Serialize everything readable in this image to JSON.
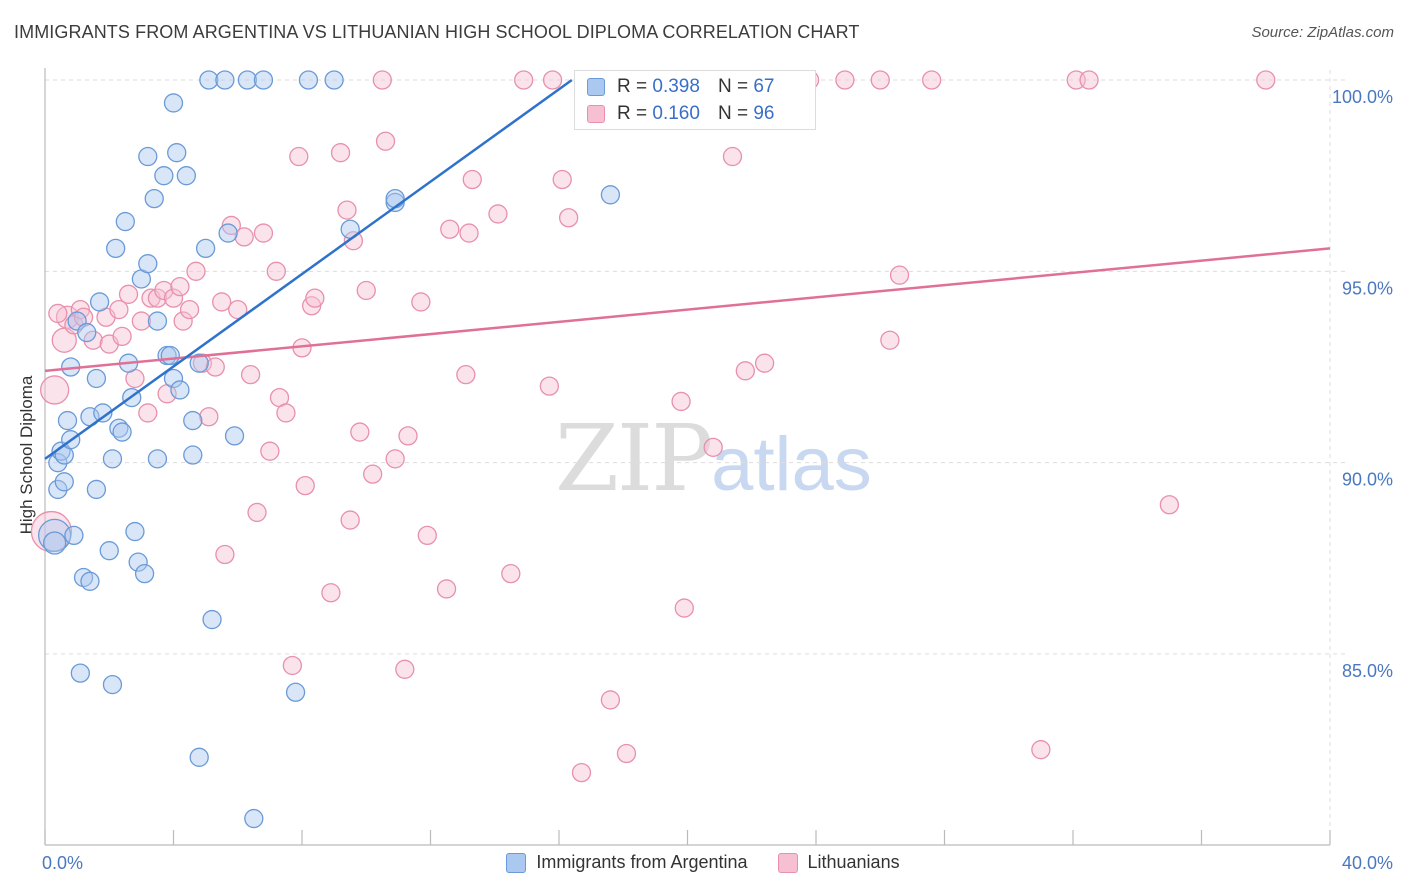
{
  "title": "IMMIGRANTS FROM ARGENTINA VS LITHUANIAN HIGH SCHOOL DIPLOMA CORRELATION CHART",
  "source": "Source: ZipAtlas.com",
  "watermark": {
    "part1": "ZIP",
    "part2": "atlas"
  },
  "colors": {
    "blue_fill": "#aac8f0",
    "blue_stroke": "#6a9ad8",
    "blue_line": "#2f72cc",
    "pink_fill": "#f6c0d2",
    "pink_stroke": "#e890ac",
    "pink_line": "#e07098",
    "tick_text": "#4a78c0",
    "grid": "#dddddd"
  },
  "inset_legend": {
    "rows": [
      {
        "r_label": "R =",
        "r_value": "0.398",
        "n_label": "N =",
        "n_value": "67"
      },
      {
        "r_label": "R =",
        "r_value": "0.160",
        "n_label": "N =",
        "n_value": "96"
      }
    ]
  },
  "bottom_legend": {
    "items": [
      {
        "label": "Immigrants from Argentina"
      },
      {
        "label": "Lithuanians"
      }
    ]
  },
  "chart_data": {
    "type": "scatter",
    "title": "IMMIGRANTS FROM ARGENTINA VS LITHUANIAN HIGH SCHOOL DIPLOMA CORRELATION CHART",
    "xlabel": "",
    "ylabel": "High School Diploma",
    "xlim": [
      0,
      40
    ],
    "ylim": [
      80.5,
      100.5
    ],
    "x_tick_labels": [
      {
        "value": 0,
        "label": "0.0%"
      },
      {
        "value": 40,
        "label": "40.0%"
      }
    ],
    "y_tick_labels": [
      {
        "value": 85,
        "label": "85.0%"
      },
      {
        "value": 90,
        "label": "90.0%"
      },
      {
        "value": 95,
        "label": "95.0%"
      },
      {
        "value": 100,
        "label": "100.0%"
      }
    ],
    "grid": true,
    "series": [
      {
        "name": "Immigrants from Argentina",
        "R": 0.398,
        "N": 67,
        "trend": {
          "x": [
            0,
            16.4
          ],
          "y": [
            90.1,
            100.0
          ]
        },
        "points": [
          [
            0.3,
            88.1,
            16
          ],
          [
            0.3,
            87.9,
            11
          ],
          [
            0.4,
            90.0,
            9
          ],
          [
            0.4,
            89.3,
            9
          ],
          [
            0.5,
            90.3,
            9
          ],
          [
            0.6,
            90.2,
            9
          ],
          [
            0.6,
            89.5,
            9
          ],
          [
            0.7,
            91.1,
            9
          ],
          [
            0.8,
            90.6,
            9
          ],
          [
            0.8,
            92.5,
            9
          ],
          [
            0.9,
            88.1,
            9
          ],
          [
            1.0,
            93.7,
            9
          ],
          [
            1.2,
            87.0,
            9
          ],
          [
            1.1,
            84.5,
            9
          ],
          [
            1.3,
            93.4,
            9
          ],
          [
            1.4,
            86.9,
            9
          ],
          [
            1.6,
            92.2,
            9
          ],
          [
            1.6,
            89.3,
            9
          ],
          [
            1.4,
            91.2,
            9
          ],
          [
            1.7,
            94.2,
            9
          ],
          [
            1.8,
            91.3,
            9
          ],
          [
            2.0,
            87.7,
            9
          ],
          [
            2.1,
            84.2,
            9
          ],
          [
            2.1,
            90.1,
            9
          ],
          [
            2.2,
            95.6,
            9
          ],
          [
            2.3,
            90.9,
            9
          ],
          [
            2.4,
            90.8,
            9
          ],
          [
            2.5,
            96.3,
            9
          ],
          [
            2.6,
            92.6,
            9
          ],
          [
            2.7,
            91.7,
            9
          ],
          [
            2.8,
            88.2,
            9
          ],
          [
            2.9,
            87.4,
            9
          ],
          [
            3.0,
            94.8,
            9
          ],
          [
            3.1,
            87.1,
            9
          ],
          [
            3.2,
            95.2,
            9
          ],
          [
            3.2,
            98.0,
            9
          ],
          [
            3.4,
            96.9,
            9
          ],
          [
            3.5,
            90.1,
            9
          ],
          [
            3.5,
            93.7,
            9
          ],
          [
            3.7,
            97.5,
            9
          ],
          [
            3.8,
            92.8,
            9
          ],
          [
            3.9,
            92.8,
            9
          ],
          [
            4.0,
            92.2,
            9
          ],
          [
            4.0,
            99.4,
            9
          ],
          [
            4.1,
            98.1,
            9
          ],
          [
            4.2,
            91.9,
            9
          ],
          [
            4.4,
            97.5,
            9
          ],
          [
            4.6,
            91.1,
            9
          ],
          [
            4.6,
            90.2,
            9
          ],
          [
            4.8,
            92.6,
            9
          ],
          [
            4.8,
            82.3,
            9
          ],
          [
            5.0,
            95.6,
            9
          ],
          [
            5.2,
            85.9,
            9
          ],
          [
            5.1,
            100.0,
            9
          ],
          [
            5.7,
            96.0,
            9
          ],
          [
            5.6,
            100.0,
            9
          ],
          [
            5.9,
            90.7,
            9
          ],
          [
            6.3,
            100.0,
            9
          ],
          [
            6.5,
            80.7,
            9
          ],
          [
            6.8,
            100.0,
            9
          ],
          [
            7.8,
            84.0,
            9
          ],
          [
            8.2,
            100.0,
            9
          ],
          [
            9.0,
            100.0,
            9
          ],
          [
            9.5,
            96.1,
            9
          ],
          [
            10.9,
            96.8,
            9
          ],
          [
            10.9,
            96.9,
            9
          ],
          [
            17.6,
            97.0,
            9
          ]
        ]
      },
      {
        "name": "Lithuanians",
        "R": 0.16,
        "N": 96,
        "trend": {
          "x": [
            0,
            40
          ],
          "y": [
            92.4,
            95.6
          ]
        },
        "points": [
          [
            0.2,
            88.2,
            20
          ],
          [
            0.3,
            91.9,
            14
          ],
          [
            0.6,
            93.2,
            12
          ],
          [
            0.7,
            93.8,
            11
          ],
          [
            0.9,
            93.6,
            9
          ],
          [
            1.1,
            94.0,
            9
          ],
          [
            1.2,
            93.8,
            9
          ],
          [
            1.5,
            93.2,
            9
          ],
          [
            1.9,
            93.8,
            9
          ],
          [
            2.0,
            93.1,
            9
          ],
          [
            2.3,
            94.0,
            9
          ],
          [
            2.4,
            93.3,
            9
          ],
          [
            2.6,
            94.4,
            9
          ],
          [
            2.8,
            92.2,
            9
          ],
          [
            3.0,
            93.7,
            9
          ],
          [
            3.2,
            91.3,
            9
          ],
          [
            3.3,
            94.3,
            9
          ],
          [
            3.5,
            94.3,
            9
          ],
          [
            3.7,
            94.5,
            9
          ],
          [
            3.8,
            91.8,
            9
          ],
          [
            4.0,
            94.3,
            9
          ],
          [
            4.2,
            94.6,
            9
          ],
          [
            4.3,
            93.7,
            9
          ],
          [
            4.5,
            94.0,
            9
          ],
          [
            4.7,
            95.0,
            9
          ],
          [
            4.9,
            92.6,
            9
          ],
          [
            5.1,
            91.2,
            9
          ],
          [
            5.3,
            92.5,
            9
          ],
          [
            5.5,
            94.2,
            9
          ],
          [
            5.6,
            87.6,
            9
          ],
          [
            5.8,
            96.2,
            9
          ],
          [
            6.0,
            94.0,
            9
          ],
          [
            6.2,
            95.9,
            9
          ],
          [
            6.4,
            92.3,
            9
          ],
          [
            6.6,
            88.7,
            9
          ],
          [
            6.8,
            96.0,
            9
          ],
          [
            7.0,
            90.3,
            9
          ],
          [
            7.2,
            95.0,
            9
          ],
          [
            7.3,
            91.7,
            9
          ],
          [
            7.5,
            91.3,
            9
          ],
          [
            7.7,
            84.7,
            9
          ],
          [
            7.9,
            98.0,
            9
          ],
          [
            8.0,
            93.0,
            9
          ],
          [
            8.1,
            89.4,
            9
          ],
          [
            8.3,
            94.1,
            9
          ],
          [
            8.4,
            94.3,
            9
          ],
          [
            8.9,
            86.6,
            9
          ],
          [
            9.2,
            98.1,
            9
          ],
          [
            9.4,
            96.6,
            9
          ],
          [
            9.5,
            88.5,
            9
          ],
          [
            9.6,
            95.8,
            9
          ],
          [
            9.8,
            90.8,
            9
          ],
          [
            10.0,
            94.5,
            9
          ],
          [
            10.2,
            89.7,
            9
          ],
          [
            10.5,
            100.0,
            9
          ],
          [
            10.6,
            98.4,
            9
          ],
          [
            10.9,
            90.1,
            9
          ],
          [
            11.2,
            84.6,
            9
          ],
          [
            11.3,
            90.7,
            9
          ],
          [
            11.7,
            94.2,
            9
          ],
          [
            11.9,
            88.1,
            9
          ],
          [
            12.5,
            86.7,
            9
          ],
          [
            12.6,
            96.1,
            9
          ],
          [
            13.1,
            92.3,
            9
          ],
          [
            13.2,
            96.0,
            9
          ],
          [
            13.3,
            97.4,
            9
          ],
          [
            14.1,
            96.5,
            9
          ],
          [
            14.5,
            87.1,
            9
          ],
          [
            14.9,
            100.0,
            9
          ],
          [
            15.7,
            92.0,
            9
          ],
          [
            15.8,
            100.0,
            9
          ],
          [
            16.1,
            97.4,
            9
          ],
          [
            16.3,
            96.4,
            9
          ],
          [
            16.7,
            81.9,
            9
          ],
          [
            17.6,
            83.8,
            9
          ],
          [
            18.1,
            82.4,
            9
          ],
          [
            19.8,
            91.6,
            9
          ],
          [
            19.9,
            86.2,
            9
          ],
          [
            20.8,
            90.4,
            9
          ],
          [
            21.4,
            98.0,
            9
          ],
          [
            21.8,
            92.4,
            9
          ],
          [
            22.4,
            92.6,
            9
          ],
          [
            23.6,
            100.0,
            9
          ],
          [
            23.8,
            100.0,
            9
          ],
          [
            24.9,
            100.0,
            9
          ],
          [
            26.0,
            100.0,
            9
          ],
          [
            26.3,
            93.2,
            9
          ],
          [
            26.6,
            94.9,
            9
          ],
          [
            27.6,
            100.0,
            9
          ],
          [
            31.0,
            82.5,
            9
          ],
          [
            32.1,
            100.0,
            9
          ],
          [
            32.5,
            100.0,
            9
          ],
          [
            35.0,
            88.9,
            9
          ],
          [
            38.0,
            100.0,
            9
          ],
          [
            23.6,
            100.0,
            9
          ],
          [
            0.4,
            93.9,
            9
          ]
        ]
      }
    ]
  }
}
